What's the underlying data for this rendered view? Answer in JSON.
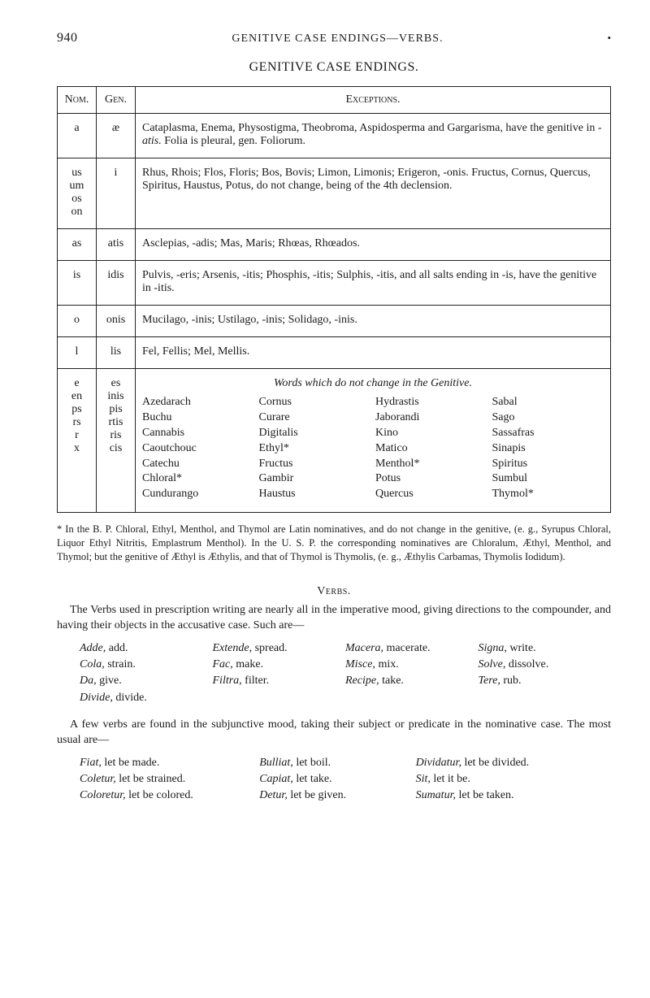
{
  "page_number": "940",
  "running_head": "GENITIVE CASE ENDINGS—VERBS.",
  "title": "GENITIVE CASE ENDINGS.",
  "table": {
    "headers": {
      "nom": "Nom.",
      "gen": "Gen.",
      "exc": "Exceptions."
    },
    "rows": [
      {
        "nom": "a",
        "gen": "æ",
        "exc": "Cataplasma, Enema, Physostigma, Theobroma, Aspidosperma and Gargarisma, have the genitive in -atis.  Folia is pleural, gen. Foliorum."
      },
      {
        "nom": "us\num\nos\non",
        "gen": "i",
        "exc": "Rhus, Rhois; Flos, Floris; Bos, Bovis; Limon, Limonis; Erigeron, -onis. Fructus, Cornus, Quercus, Spiritus, Haustus, Potus, do not change, being of the 4th declension."
      },
      {
        "nom": "as",
        "gen": "atis",
        "exc": "Asclepias, -adis; Mas, Maris; Rhœas, Rhœados."
      },
      {
        "nom": "is",
        "gen": "idis",
        "exc": "Pulvis, -eris; Arsenis, -itis; Phosphis, -itis; Sulphis, -itis, and all salts ending in -is, have the genitive in -itis."
      },
      {
        "nom": "o",
        "gen": "onis",
        "exc": "Mucilago, -inis; Ustilago, -inis; Solidago, -inis."
      },
      {
        "nom": "l",
        "gen": "lis",
        "exc": "Fel, Fellis; Mel, Mellis."
      }
    ],
    "words_row": {
      "nom": [
        "e",
        "en",
        "ps",
        "rs",
        "r",
        "x"
      ],
      "gen": [
        "es",
        "inis",
        "pis",
        "rtis",
        "ris",
        "cis"
      ],
      "title": "Words which do not change in the Genitive.",
      "cols": [
        [
          "Azedarach",
          "Buchu",
          "Cannabis",
          "Caoutchouc",
          "Catechu",
          "Chloral*",
          "Cundurango"
        ],
        [
          "Cornus",
          "Curare",
          "Digitalis",
          "Ethyl*",
          "Fructus",
          "Gambir",
          "Haustus"
        ],
        [
          "Hydrastis",
          "Jaborandi",
          "Kino",
          "Matico",
          "Menthol*",
          "Potus",
          "Quercus"
        ],
        [
          "Sabal",
          "Sago",
          "Sassafras",
          "Sinapis",
          "Spiritus",
          "Sumbul",
          "Thymol*"
        ]
      ]
    }
  },
  "footnote": "* In the B. P. Chloral, Ethyl, Menthol, and Thymol are Latin nominatives, and do not change in the genitive, (e. g., Syrupus Chloral, Liquor Ethyl Nitritis, Emplastrum Menthol). In the U. S. P. the corresponding nominatives are Chloralum, Æthyl, Menthol, and Thymol; but the genitive of Æthyl is Æthylis, and that of Thymol is Thymolis, (e. g., Æthylis Carbamas, Thymolis Iodidum).",
  "verbs": {
    "heading": "Verbs.",
    "para1": "The Verbs used in prescription writing are nearly all in the imperative mood, giving directions to the compounder, and having their objects in the accusative case.  Such are—",
    "grid1": [
      [
        {
          "it": "Adde,",
          "rest": " add."
        },
        {
          "it": "Extende,",
          "rest": " spread."
        },
        {
          "it": "Macera,",
          "rest": " macerate."
        },
        {
          "it": "Signa,",
          "rest": " write."
        }
      ],
      [
        {
          "it": "Cola,",
          "rest": " strain."
        },
        {
          "it": "Fac,",
          "rest": " make."
        },
        {
          "it": "Misce,",
          "rest": " mix."
        },
        {
          "it": "Solve,",
          "rest": " dissolve."
        }
      ],
      [
        {
          "it": "Da,",
          "rest": " give."
        },
        {
          "it": "Filtra,",
          "rest": " filter."
        },
        {
          "it": "Recipe,",
          "rest": " take."
        },
        {
          "it": "Tere,",
          "rest": " rub."
        }
      ],
      [
        {
          "it": "Divide,",
          "rest": " divide."
        },
        {
          "it": "",
          "rest": ""
        },
        {
          "it": "",
          "rest": ""
        },
        {
          "it": "",
          "rest": ""
        }
      ]
    ],
    "para2": "A few verbs are found in the subjunctive mood, taking their subject or predicate in the nominative case.  The most usual are—",
    "grid2": [
      [
        {
          "it": "Fiat,",
          "rest": " let be made."
        },
        {
          "it": "Bulliat,",
          "rest": " let boil."
        },
        {
          "it": "Dividatur,",
          "rest": " let be divided."
        }
      ],
      [
        {
          "it": "Coletur,",
          "rest": " let be strained."
        },
        {
          "it": "Capiat,",
          "rest": " let take."
        },
        {
          "it": "Sit,",
          "rest": " let it be."
        }
      ],
      [
        {
          "it": "Coloretur,",
          "rest": " let be colored."
        },
        {
          "it": "Detur,",
          "rest": " let be given."
        },
        {
          "it": "Sumatur,",
          "rest": " let be taken."
        }
      ]
    ]
  }
}
